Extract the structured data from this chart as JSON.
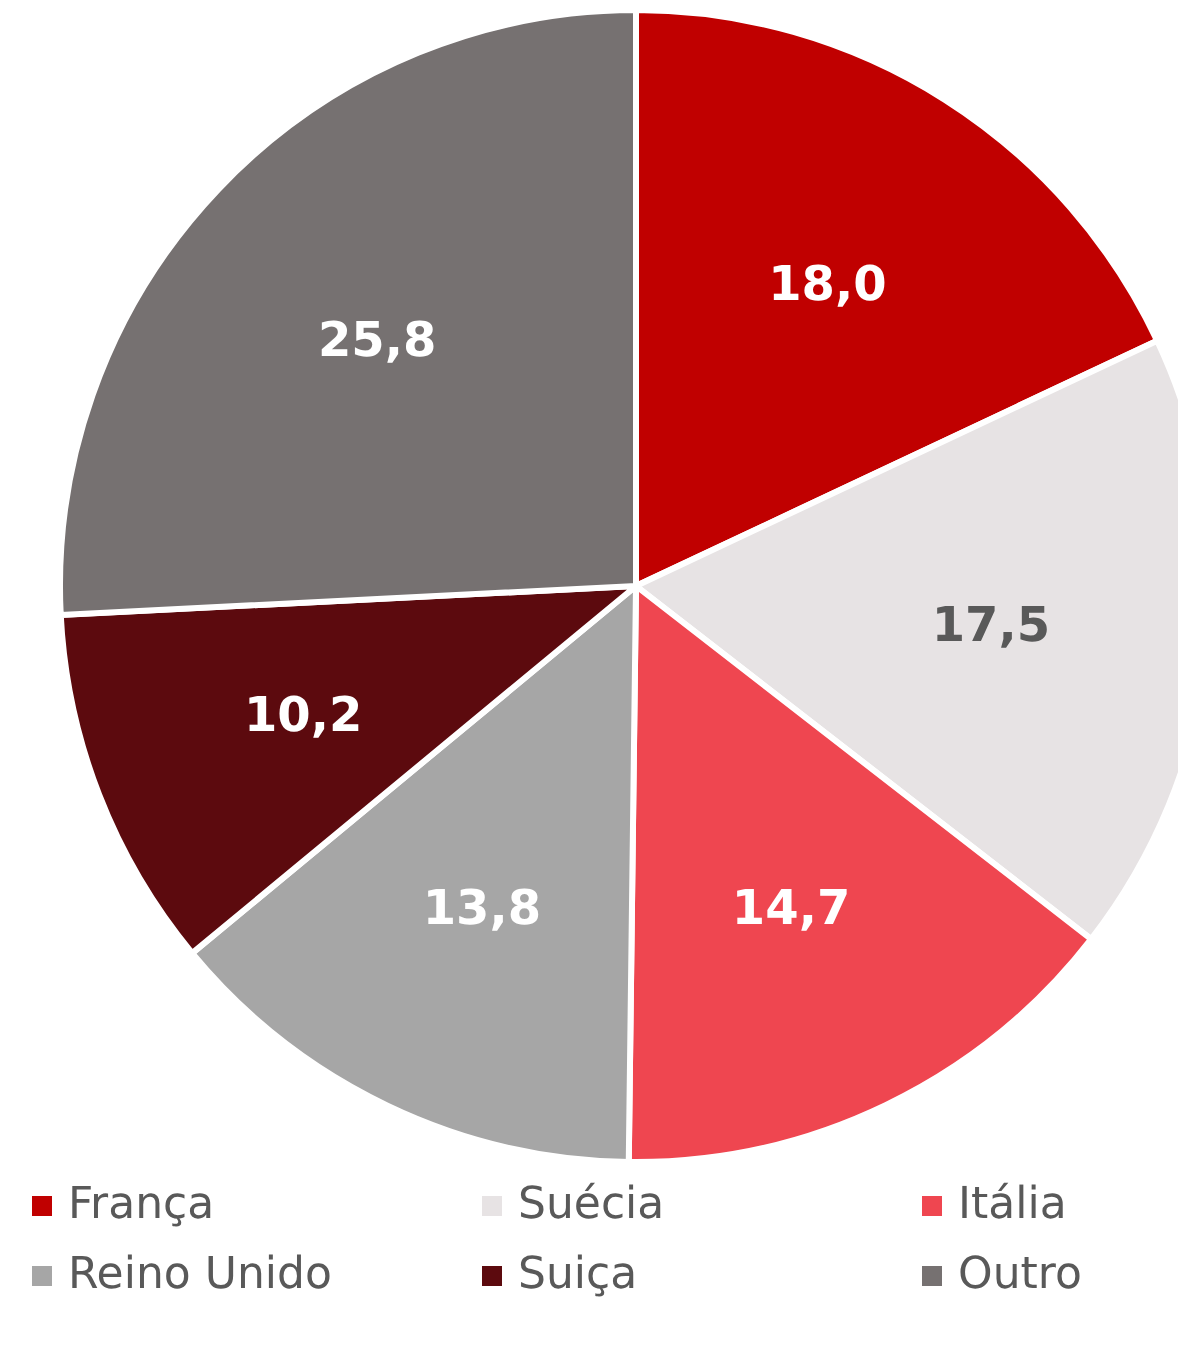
{
  "chart_data": {
    "type": "pie",
    "categories": [
      "França",
      "Suécia",
      "Itália",
      "Reino Unido",
      "Suiça",
      "Outro"
    ],
    "values": [
      18.0,
      17.5,
      14.7,
      13.8,
      10.2,
      25.8
    ],
    "value_labels": [
      "18,0",
      "17,5",
      "14,7",
      "13,8",
      "10,2",
      "25,8"
    ],
    "colors": [
      "#c00000",
      "#e7e3e4",
      "#ef4650",
      "#a6a6a6",
      "#5c0a0e",
      "#767171"
    ],
    "legend": "bottom",
    "marker": "square"
  }
}
